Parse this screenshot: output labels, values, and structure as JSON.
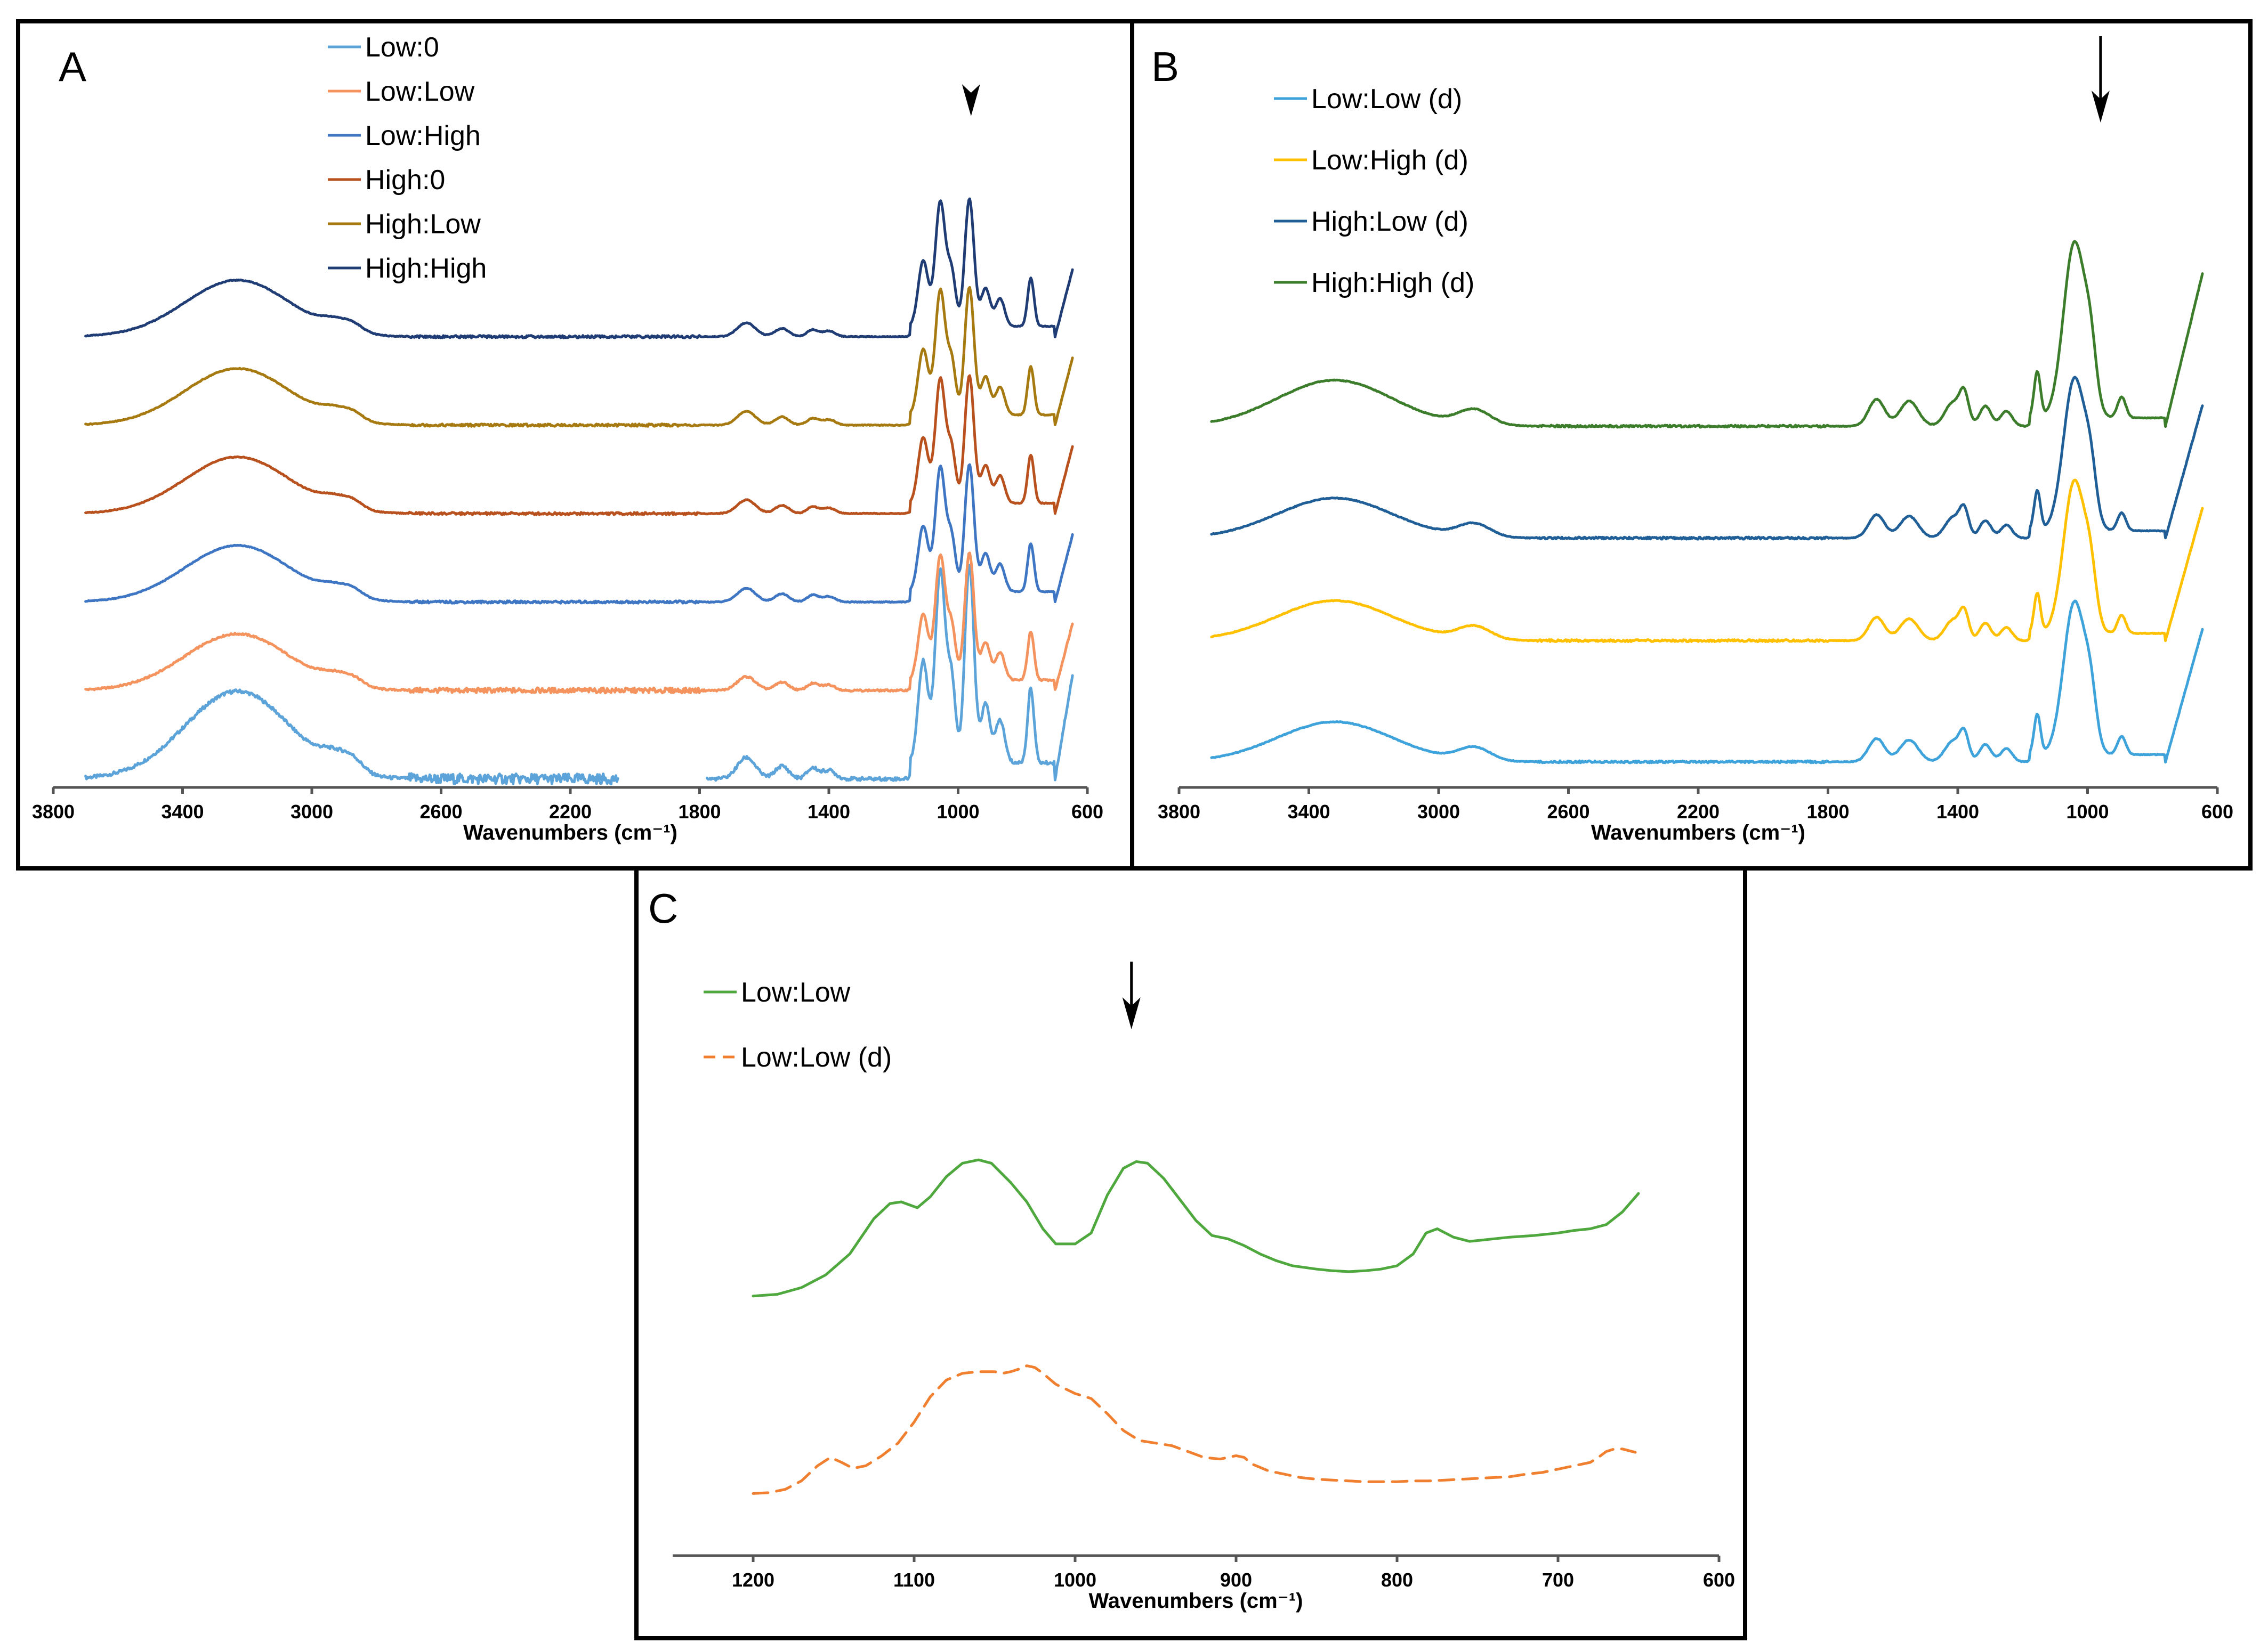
{
  "figure": {
    "panel_letters": [
      "A",
      "B",
      "C"
    ]
  },
  "chart_data": [
    {
      "type": "line",
      "panel": "A",
      "xlabel": "Wavenumbers (cm⁻¹)",
      "ylabel": "",
      "xlim": [
        3800,
        600
      ],
      "x_reversed": true,
      "xticks": [
        3800,
        3400,
        3000,
        2600,
        2200,
        1800,
        1400,
        1000,
        600
      ],
      "annotation": {
        "type": "arrow",
        "x": 960
      },
      "series": [
        {
          "name": "Low:0",
          "color": "#5BA3D9",
          "offset": 0.0,
          "scale": 1.55,
          "noise": 0.05,
          "gap": [
            2050,
            1780
          ]
        },
        {
          "name": "Low:Low",
          "color": "#F4935E",
          "offset": 1.0,
          "scale": 1.0,
          "noise": 0.025
        },
        {
          "name": "Low:High",
          "color": "#3E76C4",
          "offset": 2.0,
          "scale": 1.0,
          "noise": 0.012
        },
        {
          "name": "High:0",
          "color": "#B8511D",
          "offset": 3.0,
          "scale": 1.0,
          "noise": 0.012
        },
        {
          "name": "High:Low",
          "color": "#A77A11",
          "offset": 4.0,
          "scale": 1.0,
          "noise": 0.012
        },
        {
          "name": "High:High",
          "color": "#1F3C75",
          "offset": 5.0,
          "scale": 1.0,
          "noise": 0.012
        }
      ]
    },
    {
      "type": "line",
      "panel": "B",
      "xlabel": "Wavenumbers (cm⁻¹)",
      "ylabel": "",
      "xlim": [
        3800,
        600
      ],
      "x_reversed": true,
      "xticks": [
        3800,
        3400,
        3000,
        2600,
        2200,
        1800,
        1400,
        1000,
        600
      ],
      "annotation": {
        "type": "arrow",
        "x": 960
      },
      "series": [
        {
          "name": "Low:Low (d)",
          "color": "#3FA3DB",
          "offset": 0.0,
          "scale": 1.0,
          "noise": 0.01
        },
        {
          "name": "Low:High (d)",
          "color": "#FFC000",
          "offset": 1.3,
          "scale": 1.0,
          "noise": 0.01
        },
        {
          "name": "High:Low (d)",
          "color": "#1F5E96",
          "offset": 2.4,
          "scale": 1.0,
          "noise": 0.01
        },
        {
          "name": "High:High (d)",
          "color": "#3C7D2B",
          "offset": 3.6,
          "scale": 1.15,
          "noise": 0.01
        }
      ]
    },
    {
      "type": "line",
      "panel": "C",
      "xlabel": "Wavenumbers (cm⁻¹)",
      "ylabel": "",
      "xlim": [
        1250,
        600
      ],
      "x_reversed": true,
      "xticks": [
        1200,
        1100,
        1000,
        900,
        800,
        700,
        600
      ],
      "annotation": {
        "type": "arrow",
        "x": 965
      },
      "series": [
        {
          "name": "Low:Low",
          "color": "#4EA83D",
          "dash": "solid",
          "x": [
            1200,
            1185,
            1170,
            1155,
            1140,
            1125,
            1115,
            1108,
            1098,
            1090,
            1080,
            1070,
            1060,
            1052,
            1040,
            1030,
            1020,
            1012,
            1000,
            990,
            980,
            970,
            962,
            955,
            945,
            935,
            925,
            915,
            905,
            895,
            885,
            875,
            865,
            850,
            840,
            830,
            820,
            810,
            800,
            790,
            782,
            775,
            765,
            755,
            745,
            730,
            715,
            700,
            690,
            680,
            670,
            660,
            650
          ],
          "y": [
            0.3,
            0.32,
            0.4,
            0.55,
            0.8,
            1.22,
            1.4,
            1.42,
            1.35,
            1.48,
            1.72,
            1.88,
            1.92,
            1.88,
            1.65,
            1.42,
            1.1,
            0.92,
            0.92,
            1.05,
            1.5,
            1.82,
            1.9,
            1.88,
            1.7,
            1.45,
            1.2,
            1.02,
            0.98,
            0.9,
            0.8,
            0.72,
            0.66,
            0.62,
            0.6,
            0.59,
            0.6,
            0.62,
            0.66,
            0.8,
            1.05,
            1.1,
            1.0,
            0.95,
            0.97,
            1.0,
            1.02,
            1.05,
            1.08,
            1.1,
            1.15,
            1.3,
            1.52
          ]
        },
        {
          "name": "Low:Low (d)",
          "color": "#F07F2F",
          "dash": "dashed",
          "x": [
            1200,
            1190,
            1180,
            1170,
            1160,
            1152,
            1145,
            1138,
            1130,
            1120,
            1110,
            1100,
            1090,
            1080,
            1070,
            1060,
            1050,
            1045,
            1040,
            1035,
            1030,
            1025,
            1020,
            1012,
            1000,
            990,
            980,
            970,
            960,
            950,
            940,
            930,
            920,
            910,
            900,
            895,
            890,
            880,
            870,
            860,
            850,
            840,
            830,
            820,
            810,
            800,
            790,
            780,
            770,
            760,
            750,
            740,
            730,
            720,
            710,
            700,
            690,
            680,
            675,
            670,
            665,
            660,
            652
          ],
          "y": [
            -2.05,
            -2.04,
            -2.0,
            -1.9,
            -1.72,
            -1.62,
            -1.68,
            -1.75,
            -1.72,
            -1.6,
            -1.45,
            -1.2,
            -0.9,
            -0.7,
            -0.62,
            -0.6,
            -0.6,
            -0.62,
            -0.6,
            -0.57,
            -0.53,
            -0.55,
            -0.62,
            -0.75,
            -0.86,
            -0.92,
            -1.1,
            -1.3,
            -1.42,
            -1.45,
            -1.48,
            -1.55,
            -1.62,
            -1.64,
            -1.6,
            -1.62,
            -1.7,
            -1.78,
            -1.82,
            -1.86,
            -1.88,
            -1.89,
            -1.9,
            -1.91,
            -1.91,
            -1.91,
            -1.9,
            -1.9,
            -1.89,
            -1.88,
            -1.87,
            -1.86,
            -1.85,
            -1.82,
            -1.8,
            -1.76,
            -1.72,
            -1.68,
            -1.62,
            -1.55,
            -1.52,
            -1.52,
            -1.56
          ]
        }
      ]
    }
  ]
}
